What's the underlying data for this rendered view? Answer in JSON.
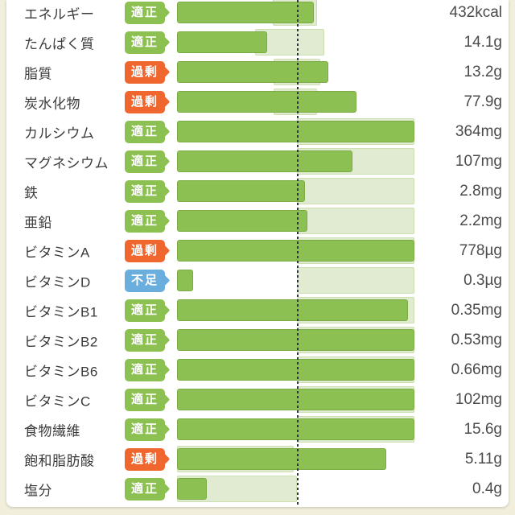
{
  "colors": {
    "frame_background": "#f2eedc",
    "card_background": "#ffffff",
    "bar_fill_green": "#8dc052",
    "bar_fill_border": "#7cab45",
    "range_band_green": "#e1ebd2",
    "badge_ok_green": "#8cc051",
    "badge_over_orange": "#f0662f",
    "badge_under_blue": "#6aaede",
    "reference_line": "#2b3440",
    "label_text": "#3b3b3b",
    "value_text": "#4b4b4b"
  },
  "status_legend": {
    "ok": "適正",
    "over": "過剰",
    "under": "不足"
  },
  "chart_data": {
    "type": "bar",
    "orientation": "horizontal",
    "grid": false,
    "reference_line_pct": 50.5,
    "axis_note": "bars start at 0 (left edge of track area); chart max = 100%; dotted line = recommended target at 50.5% of track width; light band = acceptable range per nutrient",
    "rows": [
      {
        "label": "エネルギー",
        "status": "適正",
        "status_type": "ok",
        "value": "432kcal",
        "fill_pct": 57.6,
        "band_start_pct": 40.3,
        "band_end_pct": 59.0
      },
      {
        "label": "たんぱく質",
        "status": "適正",
        "status_type": "ok",
        "value": "14.1g",
        "fill_pct": 38.0,
        "band_start_pct": 32.9,
        "band_end_pct": 62.0
      },
      {
        "label": "脂質",
        "status": "過剰",
        "status_type": "over",
        "value": "13.2g",
        "fill_pct": 63.7,
        "band_start_pct": 40.7,
        "band_end_pct": 60.3
      },
      {
        "label": "炭水化物",
        "status": "過剰",
        "status_type": "over",
        "value": "77.9g",
        "fill_pct": 75.6,
        "band_start_pct": 40.7,
        "band_end_pct": 59.0
      },
      {
        "label": "カルシウム",
        "status": "適正",
        "status_type": "ok",
        "value": "364mg",
        "fill_pct": 100,
        "band_start_pct": 50.5,
        "band_end_pct": 100
      },
      {
        "label": "マグネシウム",
        "status": "適正",
        "status_type": "ok",
        "value": "107mg",
        "fill_pct": 73.9,
        "band_start_pct": 50.5,
        "band_end_pct": 100
      },
      {
        "label": "鉄",
        "status": "適正",
        "status_type": "ok",
        "value": "2.8mg",
        "fill_pct": 53.9,
        "band_start_pct": 50.5,
        "band_end_pct": 100
      },
      {
        "label": "亜鉛",
        "status": "適正",
        "status_type": "ok",
        "value": "2.2mg",
        "fill_pct": 54.9,
        "band_start_pct": 50.5,
        "band_end_pct": 100
      },
      {
        "label": "ビタミンA",
        "status": "過剰",
        "status_type": "over",
        "value": "778µg",
        "fill_pct": 100,
        "band_start_pct": 50.5,
        "band_end_pct": 100
      },
      {
        "label": "ビタミンD",
        "status": "不足",
        "status_type": "under",
        "value": "0.3µg",
        "fill_pct": 6.8,
        "band_start_pct": 50.5,
        "band_end_pct": 100
      },
      {
        "label": "ビタミンB1",
        "status": "適正",
        "status_type": "ok",
        "value": "0.35mg",
        "fill_pct": 97.3,
        "band_start_pct": 50.5,
        "band_end_pct": 100
      },
      {
        "label": "ビタミンB2",
        "status": "適正",
        "status_type": "ok",
        "value": "0.53mg",
        "fill_pct": 100,
        "band_start_pct": 50.5,
        "band_end_pct": 100
      },
      {
        "label": "ビタミンB6",
        "status": "適正",
        "status_type": "ok",
        "value": "0.66mg",
        "fill_pct": 100,
        "band_start_pct": 50.5,
        "band_end_pct": 100
      },
      {
        "label": "ビタミンC",
        "status": "適正",
        "status_type": "ok",
        "value": "102mg",
        "fill_pct": 100,
        "band_start_pct": 50.5,
        "band_end_pct": 100
      },
      {
        "label": "食物繊維",
        "status": "適正",
        "status_type": "ok",
        "value": "15.6g",
        "fill_pct": 100,
        "band_start_pct": 50.5,
        "band_end_pct": 100
      },
      {
        "label": "飽和脂肪酸",
        "status": "過剰",
        "status_type": "over",
        "value": "5.11g",
        "fill_pct": 88.1,
        "band_start_pct": 0,
        "band_end_pct": 49.2
      },
      {
        "label": "塩分",
        "status": "適正",
        "status_type": "ok",
        "value": "0.4g",
        "fill_pct": 12.5,
        "band_start_pct": 0,
        "band_end_pct": 50.5
      }
    ]
  }
}
